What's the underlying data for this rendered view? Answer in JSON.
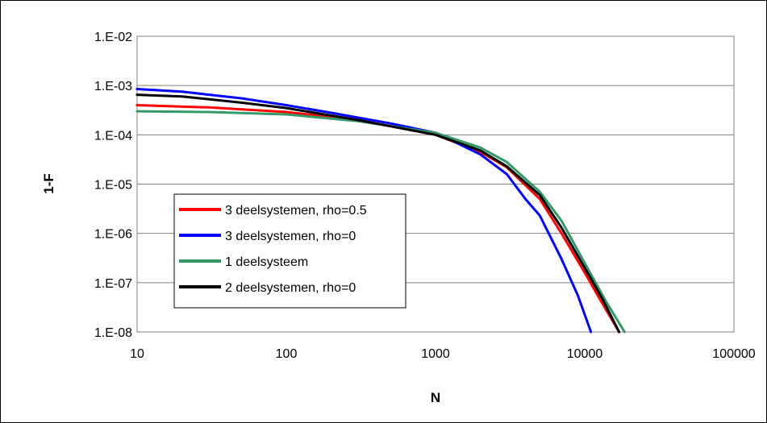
{
  "chart_data": {
    "type": "line",
    "xlabel": "N",
    "ylabel": "1-F",
    "x_scale": "log",
    "y_scale": "log",
    "xlim": [
      10,
      100000
    ],
    "ylim": [
      1e-08,
      0.01
    ],
    "grid": "horizontal",
    "legend_position": "left-center",
    "x_ticks": [
      "10",
      "100",
      "1000",
      "10000",
      "100000"
    ],
    "y_ticks": [
      "1.E-02",
      "1.E-03",
      "1.E-04",
      "1.E-05",
      "1.E-06",
      "1.E-07",
      "1.E-08"
    ],
    "series": [
      {
        "name": "3 deelsystemen, rho=0.5",
        "color": "#ff0000",
        "points": [
          [
            10,
            0.0004
          ],
          [
            30,
            0.00036
          ],
          [
            100,
            0.00029
          ],
          [
            300,
            0.0002
          ],
          [
            1000,
            0.0001
          ],
          [
            2000,
            4.5e-05
          ],
          [
            3000,
            2.2e-05
          ],
          [
            5000,
            5e-06
          ],
          [
            7000,
            1e-06
          ],
          [
            10000,
            1.6e-07
          ],
          [
            13000,
            4e-08
          ],
          [
            17000,
            1e-08
          ]
        ]
      },
      {
        "name": "3 deelsystemen, rho=0",
        "color": "#0000ff",
        "points": [
          [
            10,
            0.00085
          ],
          [
            20,
            0.00075
          ],
          [
            50,
            0.00055
          ],
          [
            100,
            0.0004
          ],
          [
            200,
            0.00028
          ],
          [
            500,
            0.00017
          ],
          [
            1000,
            0.00011
          ],
          [
            2000,
            4e-05
          ],
          [
            3000,
            1.6e-05
          ],
          [
            4000,
            5e-06
          ],
          [
            5000,
            2.3e-06
          ],
          [
            7000,
            3e-07
          ],
          [
            9000,
            5.5e-08
          ],
          [
            11000,
            1e-08
          ]
        ]
      },
      {
        "name": "1 deelsysteem",
        "color": "#339966",
        "points": [
          [
            10,
            0.0003
          ],
          [
            30,
            0.00029
          ],
          [
            100,
            0.00026
          ],
          [
            300,
            0.00019
          ],
          [
            1000,
            0.00011
          ],
          [
            2000,
            5.5e-05
          ],
          [
            3000,
            2.8e-05
          ],
          [
            5000,
            7e-06
          ],
          [
            7000,
            1.8e-06
          ],
          [
            10000,
            2.5e-07
          ],
          [
            14000,
            4e-08
          ],
          [
            18500,
            1e-08
          ]
        ]
      },
      {
        "name": "2 deelsystemen, rho=0",
        "color": "#000000",
        "points": [
          [
            10,
            0.00065
          ],
          [
            20,
            0.0006
          ],
          [
            50,
            0.00045
          ],
          [
            100,
            0.00035
          ],
          [
            300,
            0.0002
          ],
          [
            1000,
            0.0001
          ],
          [
            2000,
            4.8e-05
          ],
          [
            3000,
            2.3e-05
          ],
          [
            5000,
            6e-06
          ],
          [
            7000,
            1.3e-06
          ],
          [
            10000,
            2e-07
          ],
          [
            13000,
            5e-08
          ],
          [
            17000,
            1e-08
          ]
        ]
      }
    ]
  }
}
